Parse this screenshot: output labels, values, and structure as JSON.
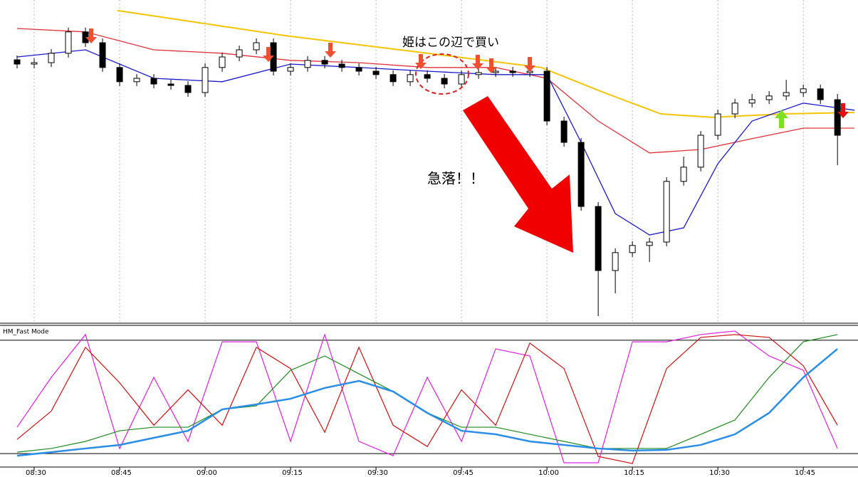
{
  "chart_data": [
    {
      "type": "candlestick",
      "x": [
        507,
        510,
        513,
        516,
        519,
        522,
        525,
        528,
        531,
        534,
        537,
        540,
        543,
        546,
        549,
        552,
        555,
        558,
        561,
        564,
        567,
        570,
        573,
        576,
        579,
        582,
        585,
        588,
        591,
        594,
        597,
        600,
        603,
        606,
        609,
        612,
        615,
        618,
        621,
        624,
        627,
        630,
        633,
        636,
        639,
        642,
        645,
        648,
        651
      ],
      "open": [
        92,
        90.5,
        91,
        94.3,
        101.8,
        98,
        89.3,
        84.3,
        85.5,
        83.5,
        83,
        80.5,
        89.3,
        93,
        95.5,
        98,
        88,
        89.3,
        91.8,
        90.5,
        89.3,
        88,
        86.8,
        84.3,
        86.8,
        85.5,
        83.5,
        86.8,
        87.5,
        88,
        87.5,
        88,
        70.5,
        63,
        40.5,
        18,
        24.3,
        26.8,
        28,
        49.3,
        54.3,
        65.5,
        73,
        76.8,
        78,
        79.3,
        80.5,
        81.8,
        78
      ],
      "high": [
        93.5,
        92.5,
        95.8,
        103.3,
        103.3,
        99.5,
        90.8,
        87,
        87,
        85,
        84.5,
        90.8,
        94.5,
        97,
        99.5,
        99.5,
        90.8,
        93.3,
        93.3,
        92,
        90.8,
        89.5,
        88.3,
        88.3,
        88.3,
        87,
        88.3,
        89,
        89.5,
        89.5,
        89.5,
        89.5,
        72,
        64.5,
        42,
        25.8,
        28.3,
        29.5,
        50.8,
        58,
        67,
        74.5,
        78.3,
        80,
        81,
        85,
        83.3,
        83.3,
        80
      ],
      "low": [
        89,
        89,
        89.5,
        92.8,
        96.5,
        87.8,
        82.8,
        82.8,
        82,
        81.5,
        79,
        79,
        87.8,
        91.5,
        94,
        86.5,
        86.5,
        87.8,
        89,
        87.8,
        86.5,
        85.3,
        82.8,
        82.8,
        84,
        82,
        82,
        85.3,
        86,
        86,
        86,
        69,
        61.5,
        39,
        2,
        10,
        22.8,
        21,
        26.5,
        47.8,
        52.8,
        64,
        71.5,
        75.3,
        76.5,
        77.8,
        79,
        76.5,
        55
      ],
      "close": [
        90.5,
        91,
        94.3,
        101.8,
        98,
        89.3,
        84.3,
        85.5,
        83.5,
        83,
        80.5,
        89.3,
        93,
        95.5,
        98,
        88,
        89.3,
        91.8,
        90.5,
        89.3,
        88,
        86.8,
        84.3,
        86.8,
        85.5,
        83.5,
        86.8,
        87.5,
        88,
        87.5,
        88,
        70.5,
        63,
        40.5,
        18,
        24.3,
        26.8,
        28,
        49.3,
        54.3,
        65.5,
        73,
        76.8,
        78,
        79.3,
        80.5,
        81.8,
        78,
        65.5
      ],
      "up_color": "#ffffff",
      "down_color": "#000000",
      "xlim": [
        504,
        654.6
      ],
      "ylim": [
        0,
        113
      ],
      "xticks": [
        {
          "value": 510,
          "label": "08:30"
        },
        {
          "value": 525,
          "label": "08:45"
        },
        {
          "value": 540,
          "label": "09:00"
        },
        {
          "value": 555,
          "label": "09:15"
        },
        {
          "value": 570,
          "label": "09:30"
        },
        {
          "value": 585,
          "label": "09:45"
        },
        {
          "value": 600,
          "label": "10:00"
        },
        {
          "value": 615,
          "label": "10:15"
        },
        {
          "value": 630,
          "label": "10:30"
        },
        {
          "value": 645,
          "label": "10:45"
        }
      ],
      "grid": true,
      "overlays": [
        {
          "color": "#f5c400",
          "x": [
            524.6,
            554,
            579,
            599,
            610,
            620,
            629,
            641.5,
            654
          ],
          "values": [
            109.3,
            100.5,
            94.3,
            89.3,
            80.5,
            73,
            71.8,
            73,
            73.5
          ]
        },
        {
          "color": "#e0303a",
          "x": [
            507,
            519,
            531,
            543,
            555,
            567,
            579,
            591,
            600,
            609,
            618,
            627,
            636,
            645,
            654
          ],
          "values": [
            103,
            101.8,
            95.5,
            94.3,
            91.8,
            91,
            89.3,
            89.3,
            85.5,
            70.5,
            59.3,
            60.5,
            64.3,
            68,
            68
          ]
        },
        {
          "color": "#1a1acc",
          "x": [
            507,
            519,
            531,
            543,
            555,
            567,
            579,
            591,
            600,
            606,
            612,
            618,
            624,
            630,
            636,
            645,
            654
          ],
          "values": [
            93,
            95.5,
            85.5,
            84.3,
            90.5,
            89.3,
            88,
            86.8,
            86.8,
            63,
            38,
            30.5,
            33,
            55.5,
            70.5,
            76.8,
            74.3
          ]
        }
      ],
      "annotations": [
        "姫はこの辺で買い",
        "急落！！"
      ]
    },
    {
      "type": "line",
      "title": "HM_Fast Mode",
      "x": [
        507,
        513,
        519,
        525,
        531,
        537,
        543,
        549,
        555,
        561,
        567,
        573,
        579,
        585,
        591,
        597,
        603,
        609,
        615,
        621,
        627,
        633,
        639,
        645,
        651
      ],
      "xlim": [
        504,
        654.6
      ],
      "ylim": [
        0,
        100
      ],
      "hlines": [
        10,
        90
      ],
      "series": [
        {
          "color": "#e020e0",
          "values": [
            28.6,
            63.8,
            94,
            13.6,
            63.8,
            18.6,
            88.9,
            88.9,
            18.6,
            94,
            18.6,
            8.5,
            63.8,
            18.6,
            83.9,
            78.9,
            3.5,
            3.5,
            88.9,
            88.9,
            94,
            96.5,
            78.9,
            68.8,
            13.6
          ]
        },
        {
          "color": "#d01010",
          "values": [
            20,
            40,
            85,
            60,
            30,
            55,
            30,
            85,
            70,
            25,
            85,
            30,
            15,
            55,
            30,
            88,
            70,
            8,
            3,
            70,
            92,
            94,
            92,
            72,
            30
          ]
        },
        {
          "color": "#1e8a1e",
          "values": [
            11,
            13.6,
            18.6,
            26.1,
            28.6,
            28.6,
            41.2,
            43.7,
            68.8,
            78.9,
            66.3,
            53.8,
            38.7,
            28.6,
            28.6,
            23.6,
            18.6,
            13.6,
            13.6,
            13.6,
            23.6,
            33.7,
            63.8,
            88.9,
            94
          ]
        },
        {
          "color": "#2a8de8",
          "values": [
            8.5,
            11,
            13.6,
            16.1,
            21.1,
            26.1,
            41.2,
            44.7,
            48.7,
            56.3,
            61.3,
            53.8,
            38.7,
            26.1,
            23.6,
            18.6,
            16.1,
            13.6,
            12.1,
            12.6,
            16.1,
            23.6,
            38.7,
            63.8,
            83.9
          ]
        }
      ]
    }
  ]
}
